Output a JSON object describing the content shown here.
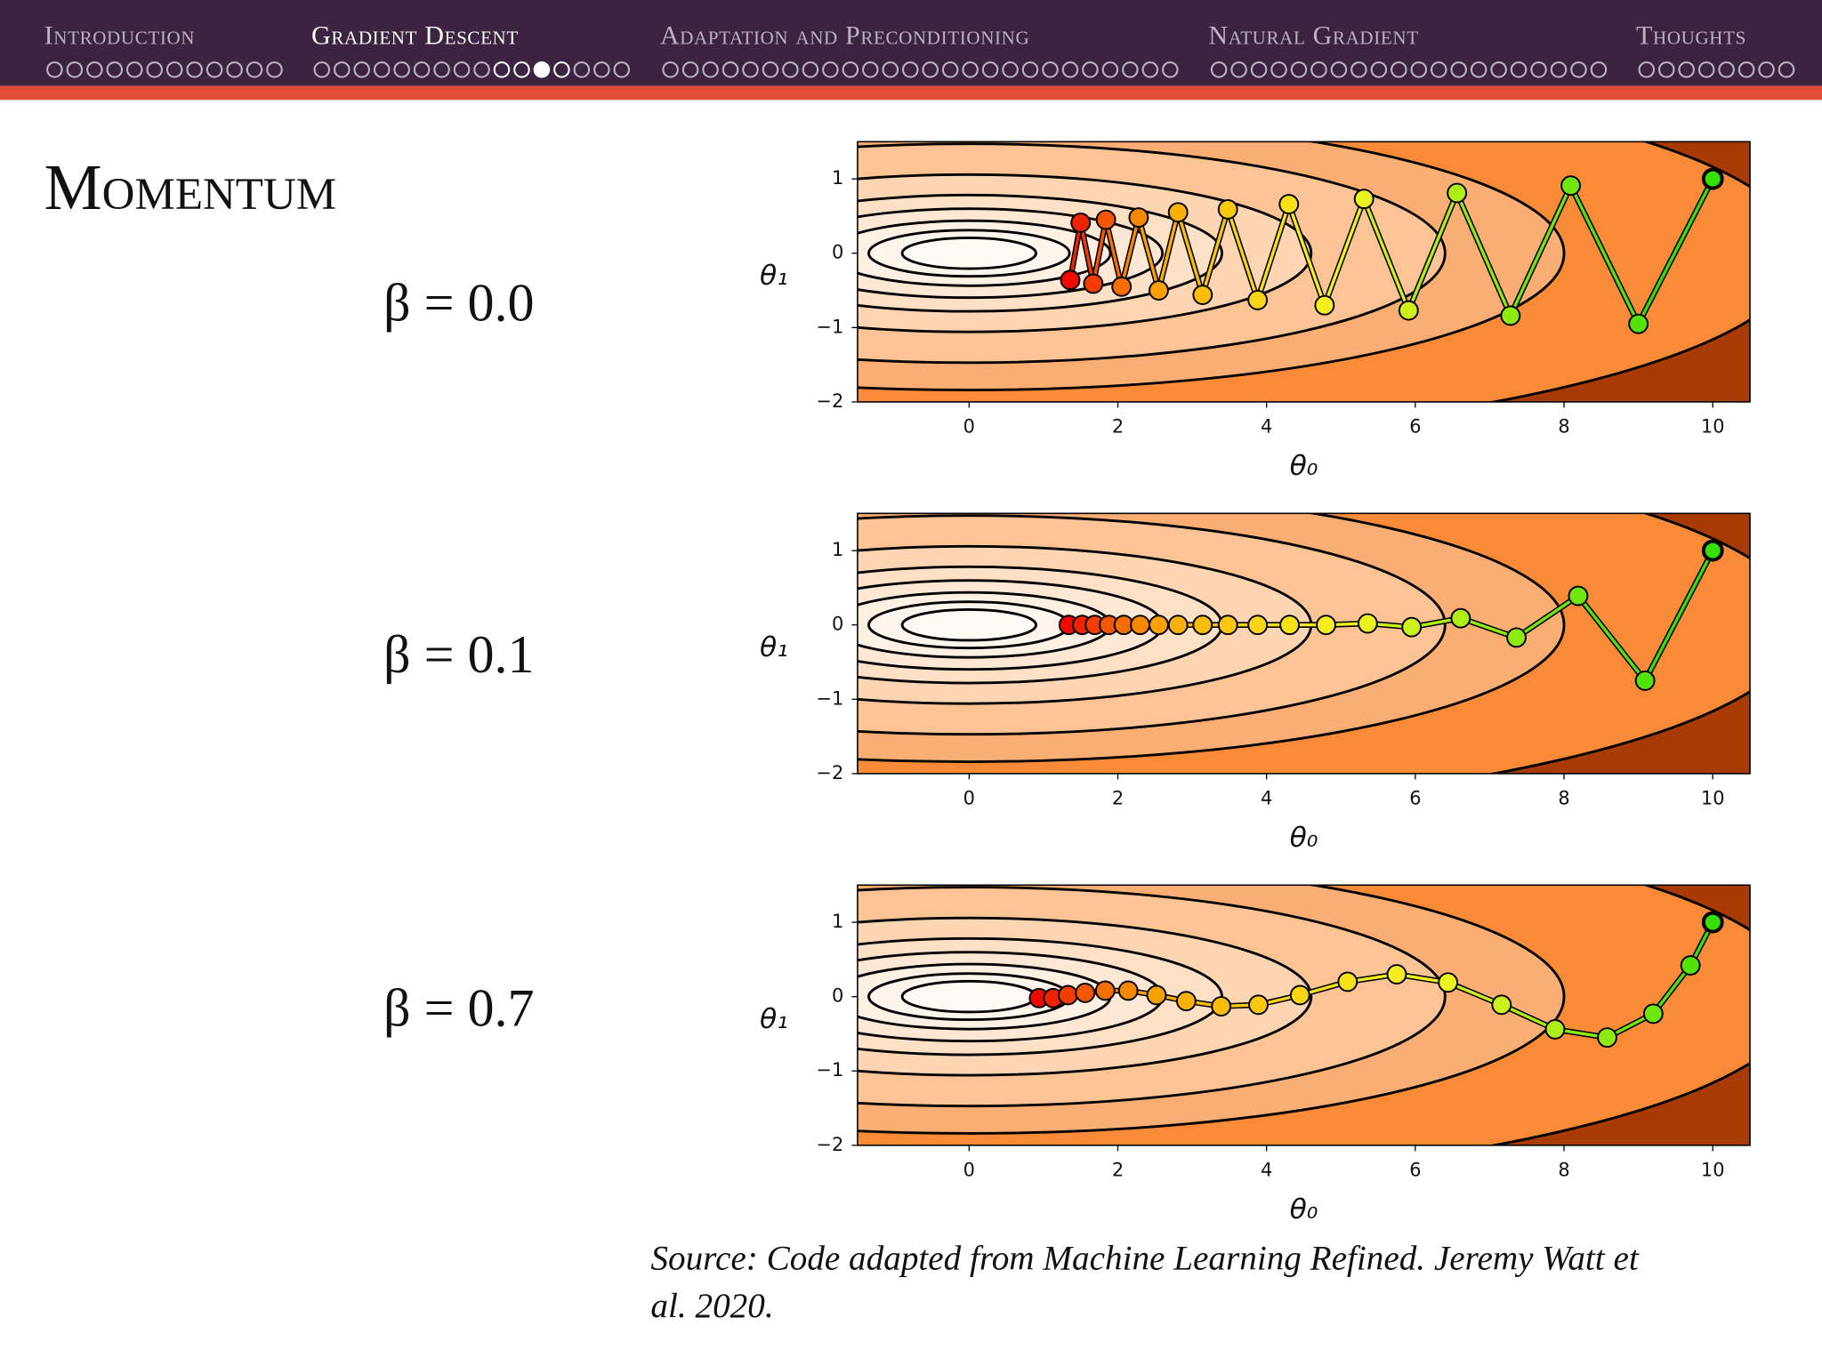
{
  "slide": {
    "nav": [
      "Introduction",
      "Gradient Descent",
      "Adaptation and Preconditioning",
      "Natural Gradient",
      "Thoughts"
    ],
    "title": "Momentum",
    "labels": [
      "β = 0.0",
      "β = 0.1",
      "β = 0.7"
    ],
    "source": [
      "Source: Code adapted from Machine Learning Refined. Jeremy Watt et",
      "al. 2020."
    ]
  },
  "chart_data": [
    {
      "type": "line",
      "xlabel": "θ₀",
      "ylabel": "θ₁",
      "x": [
        10,
        9.0,
        8.09,
        7.28,
        6.56,
        5.91,
        5.31,
        4.78,
        4.3,
        3.88,
        3.48,
        3.14,
        2.81,
        2.55,
        2.28,
        2.05,
        1.84,
        1.67,
        1.5,
        1.36
      ],
      "values": [
        1.0,
        -0.95,
        0.91,
        -0.84,
        0.81,
        -0.77,
        0.73,
        -0.7,
        0.66,
        -0.63,
        0.59,
        -0.56,
        0.55,
        -0.5,
        0.48,
        -0.45,
        0.45,
        -0.41,
        0.41,
        -0.36
      ],
      "colormap": [
        "#33e000",
        "#f5f522",
        "#fba800",
        "#ee0a00"
      ],
      "xlim": [
        -1.5,
        10.5
      ],
      "ylim": [
        -2,
        1.5
      ],
      "xticks": [
        0,
        2,
        4,
        6,
        8,
        10
      ],
      "yticks": [
        1,
        0,
        {
          "value": -1,
          "label": "−1"
        },
        {
          "value": -2,
          "label": "−2"
        }
      ]
    },
    {
      "type": "line",
      "xlabel": "θ₀",
      "ylabel": "θ₁",
      "x": [
        10,
        9.09,
        8.19,
        7.36,
        6.61,
        5.95,
        5.36,
        4.8,
        4.31,
        3.88,
        3.48,
        3.14,
        2.81,
        2.55,
        2.3,
        2.08,
        1.88,
        1.69,
        1.52,
        1.34
      ],
      "values": [
        1.0,
        -0.75,
        0.39,
        -0.17,
        0.09,
        -0.03,
        0.02,
        0,
        0,
        0,
        0,
        0,
        0,
        0,
        0,
        0,
        0,
        0,
        0,
        0
      ],
      "colormap": [
        "#33e000",
        "#f5f522",
        "#fba800",
        "#ee0a00"
      ],
      "xlim": [
        -1.5,
        10.5
      ],
      "ylim": [
        -2,
        1.5
      ],
      "xticks": [
        0,
        2,
        4,
        6,
        8,
        10
      ],
      "yticks": [
        1,
        0,
        {
          "value": -1,
          "label": "−1"
        },
        {
          "value": -2,
          "label": "−2"
        }
      ]
    },
    {
      "type": "line",
      "xlabel": "θ₀",
      "ylabel": "θ₁",
      "x": [
        10,
        9.7,
        9.2,
        8.58,
        7.88,
        7.16,
        6.44,
        5.75,
        5.09,
        4.45,
        3.89,
        3.39,
        2.92,
        2.52,
        2.14,
        1.83,
        1.56,
        1.33,
        1.13,
        0.94
      ],
      "values": [
        1.0,
        0.42,
        -0.23,
        -0.55,
        -0.44,
        -0.11,
        0.19,
        0.3,
        0.2,
        0.02,
        -0.11,
        -0.13,
        -0.06,
        0.02,
        0.08,
        0.08,
        0.05,
        0.02,
        -0.02,
        -0.02
      ],
      "colormap": [
        "#33e000",
        "#f5f522",
        "#fba800",
        "#ee0a00"
      ],
      "xlim": [
        -1.5,
        10.5
      ],
      "ylim": [
        -2,
        1.5
      ],
      "xticks": [
        0,
        2,
        4,
        6,
        8,
        10
      ],
      "yticks": [
        1,
        0,
        {
          "value": -1,
          "label": "−1"
        },
        {
          "value": -2,
          "label": "−2"
        }
      ]
    }
  ]
}
